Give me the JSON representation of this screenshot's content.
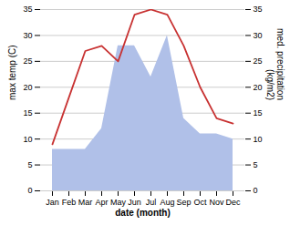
{
  "chart_data": {
    "type": "line",
    "categories": [
      "Jan",
      "Feb",
      "Mar",
      "Apr",
      "May",
      "Jun",
      "Jul",
      "Aug",
      "Sep",
      "Oct",
      "Nov",
      "Dec"
    ],
    "xlabel": "date (month)",
    "ylabel": "max temp (C)",
    "y2label": "med. precipitation\n(kg/m2)",
    "ylim": [
      0,
      35
    ],
    "yticks": [
      0,
      5,
      10,
      15,
      20,
      25,
      30,
      35
    ],
    "y2lim": [
      0,
      35
    ],
    "y2ticks": [
      0,
      5,
      10,
      15,
      20,
      25,
      30,
      35
    ],
    "grid": true,
    "series": [
      {
        "type": "area",
        "color": "#b0c0e8",
        "values": [
          8,
          8,
          8,
          12,
          28,
          28,
          22,
          30,
          14,
          11,
          11,
          10
        ]
      },
      {
        "type": "line",
        "color": "#c83232",
        "axis": "y2",
        "values": [
          9,
          18,
          27,
          28,
          25,
          34,
          35,
          34,
          28,
          20,
          14,
          13
        ]
      }
    ]
  }
}
